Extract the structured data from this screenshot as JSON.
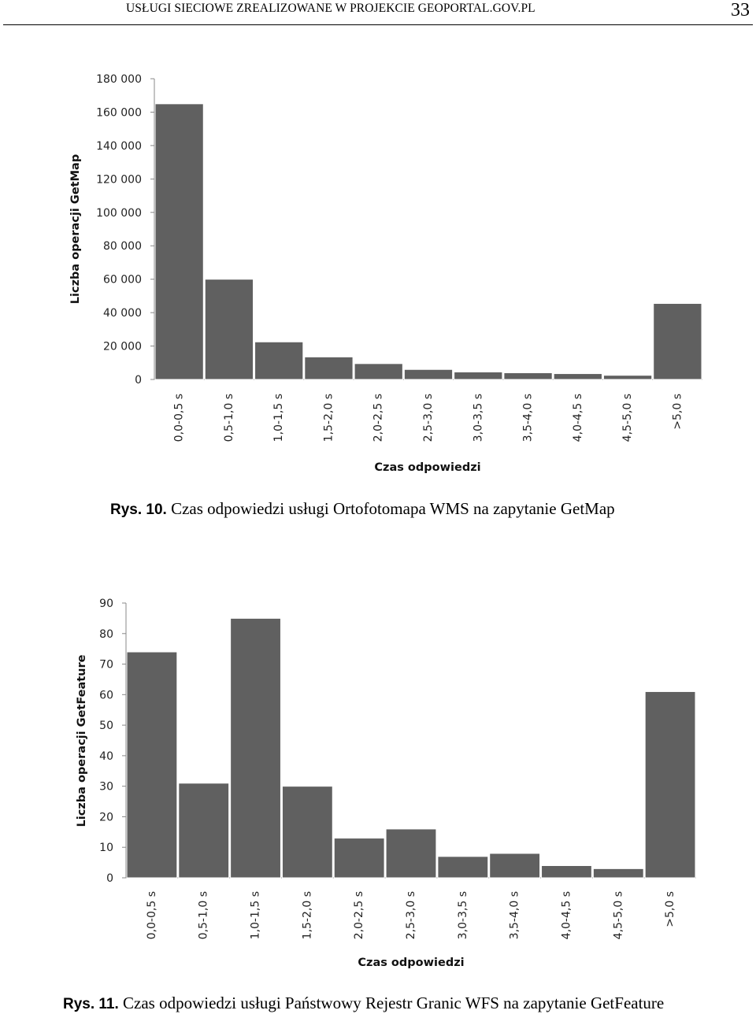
{
  "header": {
    "running_title": "USŁUGI SIECIOWE ZREALIZOWANE W PROJEKCIE GEOPORTAL.GOV.PL",
    "page_number": "33"
  },
  "figures": [
    {
      "caption_number": "Rys. 10.",
      "caption_text": "Czas odpowiedzi usługi Ortofotomapa WMS na zapytanie GetMap"
    },
    {
      "caption_number": "Rys. 11.",
      "caption_text": "Czas odpowiedzi usługi Państwowy Rejestr Granic WFS na zapytanie GetFeature"
    }
  ],
  "chart_data": [
    {
      "type": "bar",
      "categories": [
        "0,0-0,5 s",
        "0,5-1,0 s",
        "1,0-1,5 s",
        "1,5-2,0 s",
        "2,0-2,5 s",
        "2,5-3,0 s",
        "3,0-3,5 s",
        "3,5-4,0 s",
        "4,0-4,5 s",
        "4,5-5,0 s",
        ">5,0 s"
      ],
      "values": [
        165000,
        60000,
        22500,
        13500,
        9500,
        6000,
        4500,
        4000,
        3500,
        2500,
        45500
      ],
      "xlabel": "Czas odpowiedzi",
      "ylabel": "Liczba operacji GetMap",
      "ylim": [
        0,
        180000
      ],
      "yticks": [
        0,
        20000,
        40000,
        60000,
        80000,
        100000,
        120000,
        140000,
        160000,
        180000
      ],
      "ytick_labels": [
        "0",
        "20 000",
        "40 000",
        "60 000",
        "80 000",
        "100 000",
        "120 000",
        "140 000",
        "160 000",
        "180 000"
      ],
      "bar_color": "#606060",
      "grid": false,
      "legend": "none"
    },
    {
      "type": "bar",
      "categories": [
        "0,0-0,5 s",
        "0,5-1,0 s",
        "1,0-1,5 s",
        "1,5-2,0 s",
        "2,0-2,5 s",
        "2,5-3,0 s",
        "3,0-3,5 s",
        "3,5-4,0 s",
        "4,0-4,5 s",
        "4,5-5,0 s",
        ">5,0 s"
      ],
      "values": [
        74,
        31,
        85,
        30,
        13,
        16,
        7,
        8,
        4,
        3,
        61
      ],
      "xlabel": "Czas odpowiedzi",
      "ylabel": "Liczba operacji GetFeature",
      "ylim": [
        0,
        90
      ],
      "yticks": [
        0,
        10,
        20,
        30,
        40,
        50,
        60,
        70,
        80,
        90
      ],
      "ytick_labels": [
        "0",
        "10",
        "20",
        "30",
        "40",
        "50",
        "60",
        "70",
        "80",
        "90"
      ],
      "bar_color": "#606060",
      "grid": false,
      "legend": "none"
    }
  ]
}
